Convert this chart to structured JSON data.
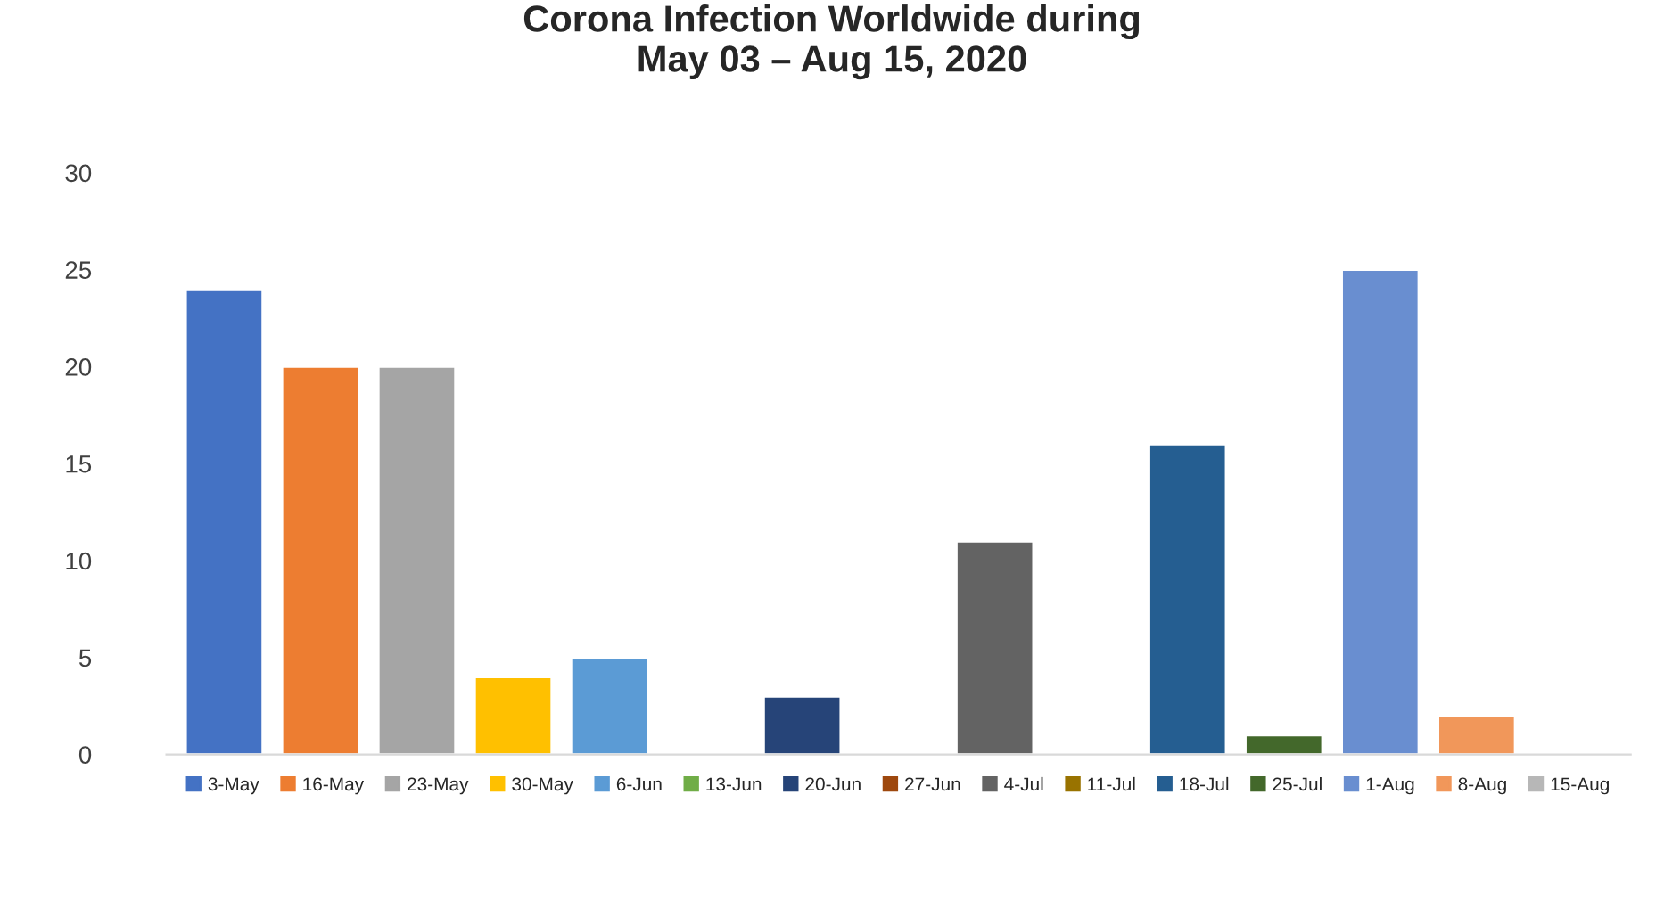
{
  "chart_data": {
    "type": "bar",
    "title": "Corona Infection Worldwide during\nMay 03 – Aug 15, 2020",
    "categories": [
      null,
      null,
      null,
      null,
      null,
      null,
      null,
      null,
      null,
      null,
      null,
      null,
      null,
      null,
      null
    ],
    "series": [
      {
        "name": "3-May",
        "color": "#4472c4",
        "values": [
          24,
          null,
          null,
          null,
          null,
          null,
          null,
          null,
          null,
          null,
          null,
          null,
          null,
          null,
          null
        ]
      },
      {
        "name": "16-May",
        "color": "#ed7d31",
        "values": [
          null,
          20,
          null,
          null,
          null,
          null,
          null,
          null,
          null,
          null,
          null,
          null,
          null,
          null,
          null
        ]
      },
      {
        "name": "23-May",
        "color": "#a5a5a5",
        "values": [
          null,
          null,
          20,
          null,
          null,
          null,
          null,
          null,
          null,
          null,
          null,
          null,
          null,
          null,
          null
        ]
      },
      {
        "name": "30-May",
        "color": "#ffc000",
        "values": [
          null,
          null,
          null,
          4,
          null,
          null,
          null,
          null,
          null,
          null,
          null,
          null,
          null,
          null,
          null
        ]
      },
      {
        "name": "6-Jun",
        "color": "#5b9bd5",
        "values": [
          null,
          null,
          null,
          null,
          5,
          null,
          null,
          null,
          null,
          null,
          null,
          null,
          null,
          null,
          null
        ]
      },
      {
        "name": "13-Jun",
        "color": "#70ad47",
        "values": [
          null,
          null,
          null,
          null,
          null,
          null,
          null,
          null,
          null,
          null,
          null,
          null,
          null,
          null,
          null
        ]
      },
      {
        "name": "20-Jun",
        "color": "#264478",
        "values": [
          null,
          null,
          null,
          null,
          null,
          null,
          3,
          null,
          null,
          null,
          null,
          null,
          null,
          null,
          null
        ]
      },
      {
        "name": "27-Jun",
        "color": "#9e480e",
        "values": [
          null,
          null,
          null,
          null,
          null,
          null,
          null,
          null,
          null,
          null,
          null,
          null,
          null,
          null,
          null
        ]
      },
      {
        "name": "4-Jul",
        "color": "#636363",
        "values": [
          null,
          null,
          null,
          null,
          null,
          null,
          null,
          null,
          11,
          null,
          null,
          null,
          null,
          null,
          null
        ]
      },
      {
        "name": "11-Jul",
        "color": "#997300",
        "values": [
          null,
          null,
          null,
          null,
          null,
          null,
          null,
          null,
          null,
          null,
          null,
          null,
          null,
          null,
          null
        ]
      },
      {
        "name": "18-Jul",
        "color": "#255e91",
        "values": [
          null,
          null,
          null,
          null,
          null,
          null,
          null,
          null,
          null,
          null,
          16,
          null,
          null,
          null,
          null
        ]
      },
      {
        "name": "25-Jul",
        "color": "#43682b",
        "values": [
          null,
          null,
          null,
          null,
          null,
          null,
          null,
          null,
          null,
          null,
          null,
          1,
          null,
          null,
          null
        ]
      },
      {
        "name": "1-Aug",
        "color": "#698ed0",
        "values": [
          null,
          null,
          null,
          null,
          null,
          null,
          null,
          null,
          null,
          null,
          null,
          null,
          25,
          null,
          null
        ]
      },
      {
        "name": "8-Aug",
        "color": "#f1975a",
        "values": [
          null,
          null,
          null,
          null,
          null,
          null,
          null,
          null,
          null,
          null,
          null,
          null,
          null,
          2,
          null
        ]
      },
      {
        "name": "15-Aug",
        "color": "#b7b7b7",
        "values": [
          null,
          null,
          null,
          null,
          null,
          null,
          null,
          null,
          null,
          null,
          null,
          null,
          null,
          null,
          null
        ]
      }
    ],
    "ylim": [
      0,
      30
    ],
    "yticks": [
      0,
      5,
      10,
      15,
      20,
      25,
      30
    ],
    "grid": false,
    "legend": "bottom"
  }
}
